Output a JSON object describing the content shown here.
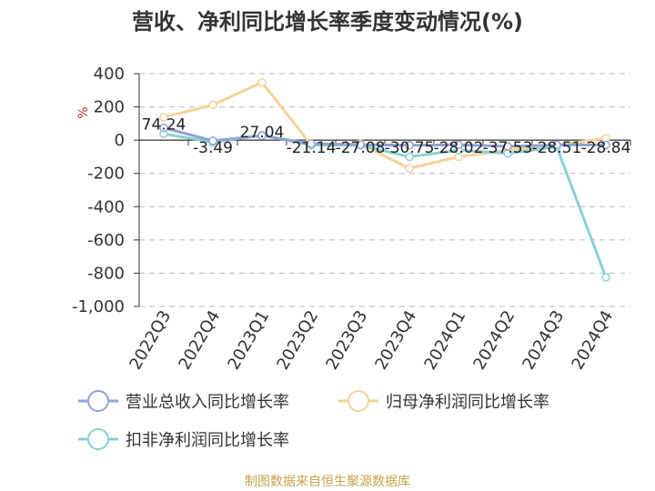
{
  "chart_data": {
    "type": "line",
    "title": "营收、净利同比增长率季度变动情况(%)",
    "unit": "%",
    "categories": [
      "2022Q3",
      "2022Q4",
      "2023Q1",
      "2023Q2",
      "2023Q3",
      "2023Q4",
      "2024Q1",
      "2024Q2",
      "2024Q3",
      "2024Q4"
    ],
    "yticks": [
      "400",
      "200",
      "0",
      "-200",
      "-400",
      "-600",
      "-800",
      "-1,000"
    ],
    "ylim": [
      -1000,
      400
    ],
    "grid": true,
    "legend_position": "bottom",
    "series": [
      {
        "name": "营业总收入同比增长率",
        "color": "#8fa3d6",
        "values": [
          74.24,
          -3.49,
          27.04,
          -21.14,
          -27.08,
          -30.75,
          -28.02,
          -37.53,
          -28.51,
          -28.84
        ],
        "labels": [
          "74.24",
          "-3.49",
          "27.04",
          "-21.14",
          "-27.08",
          "-30.75",
          "-28.02",
          "-37.53",
          "-28.51",
          "-28.84"
        ]
      },
      {
        "name": "归母净利润同比增长率",
        "color": "#f4d29b",
        "values": [
          138,
          212,
          348,
          -28,
          -22,
          -170,
          -100,
          -60,
          -30,
          12
        ]
      },
      {
        "name": "扣非净利润同比增长率",
        "color": "#88d1d6",
        "values": [
          38,
          -12,
          30,
          -30,
          -30,
          -100,
          -60,
          -80,
          -40,
          -825
        ]
      }
    ]
  },
  "source": "制图数据来自恒生聚源数据库"
}
